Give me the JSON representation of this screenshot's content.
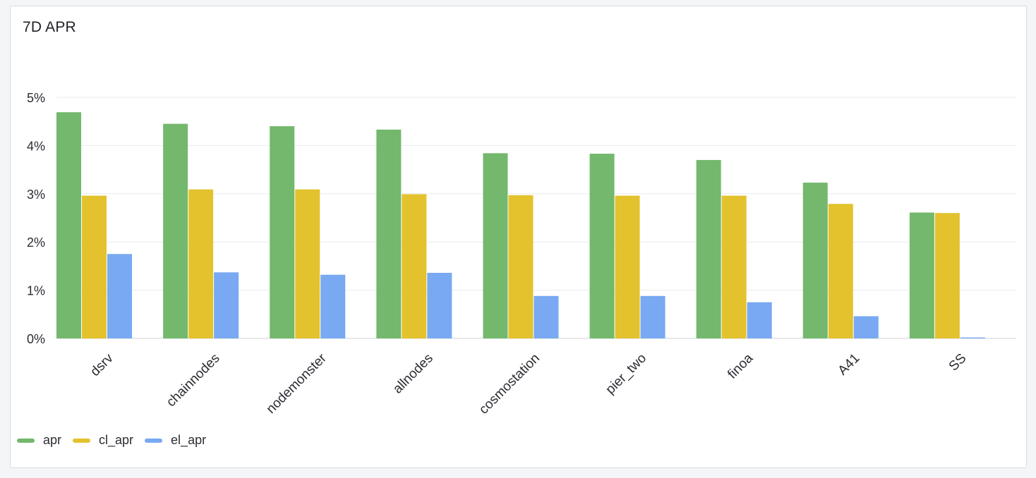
{
  "panel": {
    "title": "7D APR"
  },
  "colors": {
    "apr": "#73b86c",
    "cl_apr": "#e3c22e",
    "el_apr": "#78a9f2",
    "grid": "#e9ebee",
    "tick_text": "#2b2d33",
    "axis": "#cfd2d7"
  },
  "chart_data": {
    "type": "bar",
    "title": "7D APR",
    "xlabel": "",
    "ylabel": "",
    "ylim": [
      0,
      5
    ],
    "yticks": [
      "0%",
      "1%",
      "2%",
      "3%",
      "4%",
      "5%"
    ],
    "grid": true,
    "legend_position": "bottom-left",
    "categories": [
      "dsrv",
      "chainnodes",
      "nodemonster",
      "allnodes",
      "cosmostation",
      "pier_two",
      "finoa",
      "A41",
      "SS"
    ],
    "series": [
      {
        "name": "apr",
        "key": "apr",
        "values": [
          4.69,
          4.45,
          4.4,
          4.33,
          3.84,
          3.83,
          3.7,
          3.23,
          2.61
        ]
      },
      {
        "name": "cl_apr",
        "key": "cl_apr",
        "values": [
          2.96,
          3.09,
          3.09,
          2.99,
          2.97,
          2.96,
          2.96,
          2.79,
          2.6
        ]
      },
      {
        "name": "el_apr",
        "key": "el_apr",
        "values": [
          1.75,
          1.37,
          1.32,
          1.36,
          0.88,
          0.88,
          0.75,
          0.46,
          0.02
        ]
      }
    ]
  }
}
